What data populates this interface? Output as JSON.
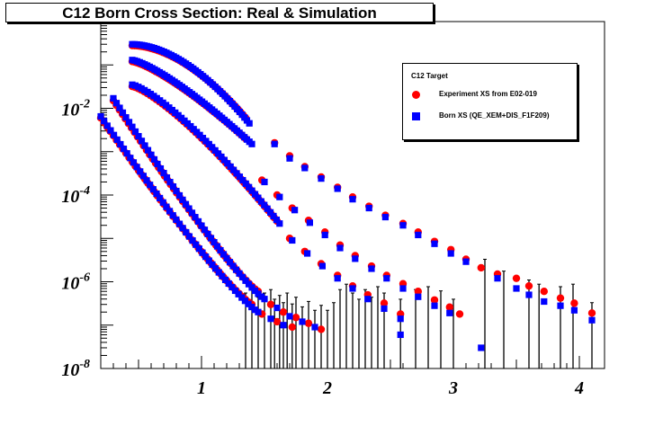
{
  "title": "C12 Born Cross Section: Real & Simulation",
  "legend": {
    "header": "C12 Target",
    "entries": [
      {
        "label": "Experiment XS from E02-019",
        "marker": "circle",
        "color": "#ff0000"
      },
      {
        "label": "Born XS (QE_XEM+DIS_F1F209)",
        "marker": "square",
        "color": "#0000ff"
      }
    ]
  },
  "chart_data": {
    "type": "scatter",
    "title": "C12 Born Cross Section: Real & Simulation",
    "xlabel": "",
    "ylabel": "",
    "xlim": [
      0.2,
      4.2
    ],
    "ylim": [
      1e-08,
      1
    ],
    "yscale": "log",
    "x_ticks": [
      1,
      2,
      3,
      4
    ],
    "x_tick_labels": [
      "1",
      "2",
      "3",
      "4"
    ],
    "y_tick_exponents": [
      -8,
      -6,
      -4,
      -2
    ],
    "y_tick_labels": [
      "10^-8",
      "10^-6",
      "10^-4",
      "10^-2"
    ],
    "series": [
      {
        "name": "Experiment XS from E02-019",
        "marker": "circle",
        "color": "#ff0000",
        "curves": [
          {
            "x_start": 0.45,
            "x_end": 1.35,
            "y_start": 0.28,
            "y_end": 0.006,
            "shape": "shoulder",
            "tail": [
              [
                1.58,
                0.0016
              ],
              [
                1.7,
                0.0008
              ],
              [
                1.82,
                0.00045
              ],
              [
                1.95,
                0.00026
              ],
              [
                2.08,
                0.00015
              ],
              [
                2.2,
                9e-05
              ],
              [
                2.33,
                5.5e-05
              ],
              [
                2.46,
                3.4e-05
              ],
              [
                2.6,
                2.2e-05
              ],
              [
                2.72,
                1.4e-05
              ],
              [
                2.85,
                8.5e-06
              ],
              [
                2.98,
                5.5e-06
              ],
              [
                3.1,
                3.3e-06
              ],
              [
                3.22,
                2.1e-06
              ],
              [
                3.35,
                1.5e-06
              ],
              [
                3.5,
                1.2e-06
              ],
              [
                3.6,
                8e-07
              ],
              [
                3.72,
                6e-07
              ],
              [
                3.85,
                4.2e-07
              ],
              [
                3.96,
                3.2e-07
              ],
              [
                4.1,
                1.9e-07
              ]
            ]
          },
          {
            "x_start": 0.45,
            "x_end": 1.35,
            "y_start": 0.12,
            "y_end": 0.002,
            "shape": "smooth",
            "tail": [
              [
                1.48,
                0.00022
              ],
              [
                1.6,
                0.0001
              ],
              [
                1.72,
                5e-05
              ],
              [
                1.85,
                2.6e-05
              ],
              [
                1.98,
                1.4e-05
              ],
              [
                2.1,
                7e-06
              ],
              [
                2.22,
                4e-06
              ],
              [
                2.35,
                2.3e-06
              ],
              [
                2.47,
                1.4e-06
              ],
              [
                2.6,
                9e-07
              ],
              [
                2.72,
                6e-07
              ],
              [
                2.85,
                3.8e-07
              ],
              [
                2.97,
                2.6e-07
              ],
              [
                3.05,
                1.8e-07
              ]
            ]
          },
          {
            "x_start": 0.45,
            "x_end": 1.6,
            "y_start": 0.032,
            "y_end": 2.5e-05,
            "shape": "smooth",
            "tail": [
              [
                1.7,
                1e-05
              ],
              [
                1.82,
                5e-06
              ],
              [
                1.95,
                2.6e-06
              ],
              [
                2.08,
                1.4e-06
              ],
              [
                2.2,
                8e-07
              ],
              [
                2.32,
                5e-07
              ],
              [
                2.45,
                3.2e-07
              ],
              [
                2.58,
                1.8e-07
              ]
            ]
          },
          {
            "x_start": 0.3,
            "x_end": 1.45,
            "y_start": 0.015,
            "y_end": 6e-07,
            "shape": "steep",
            "tail": [
              [
                1.55,
                3e-07
              ],
              [
                1.65,
                2e-07
              ],
              [
                1.75,
                1.5e-07
              ],
              [
                1.85,
                1.1e-07
              ],
              [
                1.95,
                8e-08
              ]
            ]
          },
          {
            "x_start": 0.2,
            "x_end": 1.4,
            "y_start": 0.006,
            "y_end": 3e-07,
            "shape": "steep",
            "tail": [
              [
                1.48,
                1.8e-07
              ],
              [
                1.6,
                1.2e-07
              ],
              [
                1.72,
                9e-08
              ]
            ]
          }
        ]
      },
      {
        "name": "Born XS (QE_XEM+DIS_F1F209)",
        "marker": "square",
        "color": "#0000ff",
        "curves": [
          {
            "x_start": 0.45,
            "x_end": 1.38,
            "y_start": 0.3,
            "y_end": 0.0045,
            "shape": "shoulder",
            "tail": [
              [
                1.58,
                0.0015
              ],
              [
                1.7,
                0.0007
              ],
              [
                1.82,
                0.00042
              ],
              [
                1.95,
                0.00024
              ],
              [
                2.08,
                0.00014
              ],
              [
                2.2,
                8e-05
              ],
              [
                2.33,
                5e-05
              ],
              [
                2.46,
                3.1e-05
              ],
              [
                2.6,
                2e-05
              ],
              [
                2.72,
                1.2e-05
              ],
              [
                2.85,
                7.5e-06
              ],
              [
                2.98,
                4.5e-06
              ],
              [
                3.1,
                2.9e-06
              ],
              [
                3.22,
                3e-08
              ],
              [
                3.35,
                1.2e-06
              ],
              [
                3.5,
                7e-07
              ],
              [
                3.6,
                5e-07
              ],
              [
                3.72,
                3.5e-07
              ],
              [
                3.85,
                2.8e-07
              ],
              [
                3.96,
                2.2e-07
              ],
              [
                4.1,
                1.3e-07
              ]
            ]
          },
          {
            "x_start": 0.45,
            "x_end": 1.4,
            "y_start": 0.13,
            "y_end": 0.0015,
            "shape": "smooth",
            "tail": [
              [
                1.5,
                0.0002
              ],
              [
                1.62,
                9e-05
              ],
              [
                1.74,
                4.5e-05
              ],
              [
                1.86,
                2.3e-05
              ],
              [
                1.98,
                1.2e-05
              ],
              [
                2.1,
                6e-06
              ],
              [
                2.22,
                3.4e-06
              ],
              [
                2.35,
                2e-06
              ],
              [
                2.47,
                1.2e-06
              ],
              [
                2.6,
                7e-07
              ],
              [
                2.72,
                4.5e-07
              ],
              [
                2.85,
                2.8e-07
              ],
              [
                2.97,
                1.9e-07
              ],
              [
                2.58,
                6e-08
              ]
            ]
          },
          {
            "x_start": 0.45,
            "x_end": 1.62,
            "y_start": 0.035,
            "y_end": 2.2e-05,
            "shape": "smooth",
            "tail": [
              [
                1.72,
                9e-06
              ],
              [
                1.84,
                4.5e-06
              ],
              [
                1.96,
                2.3e-06
              ],
              [
                2.08,
                1.2e-06
              ],
              [
                2.2,
                7e-07
              ],
              [
                2.32,
                4e-07
              ],
              [
                2.45,
                2.4e-07
              ],
              [
                2.58,
                1.4e-07
              ]
            ]
          },
          {
            "x_start": 0.3,
            "x_end": 1.5,
            "y_start": 0.017,
            "y_end": 4e-07,
            "shape": "steep",
            "tail": [
              [
                1.6,
                2.5e-07
              ],
              [
                1.7,
                1.6e-07
              ],
              [
                1.8,
                1.2e-07
              ],
              [
                1.9,
                9e-08
              ]
            ]
          },
          {
            "x_start": 0.2,
            "x_end": 1.45,
            "y_start": 0.0065,
            "y_end": 2e-07,
            "shape": "steep",
            "tail": [
              [
                1.55,
                1.4e-07
              ],
              [
                1.65,
                1e-07
              ]
            ]
          }
        ]
      }
    ],
    "error_bars": [
      [
        1.35,
        2.5e-07
      ],
      [
        1.4,
        3e-07
      ],
      [
        1.45,
        2e-07
      ],
      [
        1.5,
        2.5e-07
      ],
      [
        1.55,
        3e-07
      ],
      [
        1.58,
        1.8e-07
      ],
      [
        1.62,
        2.2e-07
      ],
      [
        1.65,
        1.5e-07
      ],
      [
        1.68,
        2.5e-07
      ],
      [
        1.72,
        1.4e-07
      ],
      [
        1.75,
        2e-07
      ],
      [
        1.8,
        1.2e-07
      ],
      [
        1.85,
        1.6e-07
      ],
      [
        1.9,
        1e-07
      ],
      [
        1.95,
        1.3e-07
      ],
      [
        2.0,
        1e-07
      ],
      [
        2.05,
        1.5e-07
      ],
      [
        2.1,
        3e-07
      ],
      [
        2.15,
        4e-07
      ],
      [
        2.2,
        2.5e-07
      ],
      [
        2.25,
        1.8e-07
      ],
      [
        2.3,
        3e-07
      ],
      [
        2.35,
        2e-07
      ],
      [
        2.4,
        3.5e-07
      ],
      [
        2.45,
        2.5e-07
      ],
      [
        2.58,
        1.8e-07
      ],
      [
        2.7,
        3e-07
      ],
      [
        2.8,
        3.5e-07
      ],
      [
        2.9,
        2.8e-07
      ],
      [
        3.0,
        1.8e-07
      ],
      [
        3.25,
        1.5e-06
      ],
      [
        3.4,
        8e-07
      ],
      [
        3.6,
        5e-07
      ],
      [
        3.68,
        4e-07
      ],
      [
        3.85,
        3.5e-07
      ],
      [
        3.95,
        4e-07
      ],
      [
        4.1,
        1.5e-07
      ]
    ]
  }
}
